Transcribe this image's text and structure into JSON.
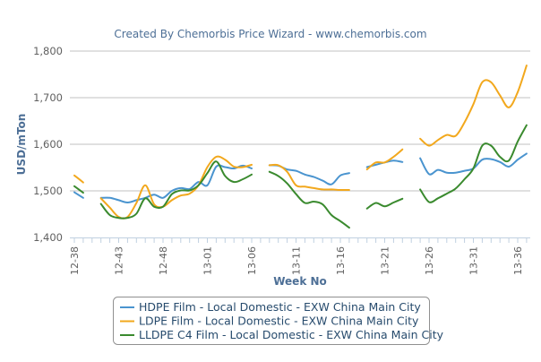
{
  "chart_data": {
    "type": "line",
    "title": "Created By Chemorbis Price Wizard - www.chemorbis.com",
    "xlabel": "Week No",
    "ylabel": "USD/mTon",
    "ylim": [
      1400,
      1800
    ],
    "yticks": [
      "1,400",
      "1,500",
      "1,600",
      "1,700",
      "1,800"
    ],
    "ytick_values": [
      1400,
      1500,
      1600,
      1700,
      1800
    ],
    "grid": true,
    "legend_position": "bottom",
    "categories": [
      "12-38",
      "12-39",
      "12-40",
      "12-41",
      "12-42",
      "12-43",
      "12-44",
      "12-45",
      "12-46",
      "12-47",
      "12-48",
      "12-49",
      "12-50",
      "12-51",
      "12-52",
      "13-01",
      "13-02",
      "13-03",
      "13-04",
      "13-05",
      "13-06",
      "13-07",
      "13-08",
      "13-09",
      "13-10",
      "13-11",
      "13-12",
      "13-13",
      "13-14",
      "13-15",
      "13-16",
      "13-17",
      "13-18",
      "13-19",
      "13-20",
      "13-21",
      "13-22",
      "13-23",
      "13-24",
      "13-25",
      "13-26",
      "13-27",
      "13-28",
      "13-29",
      "13-30",
      "13-31",
      "13-32",
      "13-33",
      "13-34",
      "13-35",
      "13-36",
      "13-37"
    ],
    "xtick_labels": [
      "12-38",
      "12-43",
      "12-48",
      "13-01",
      "13-06",
      "13-11",
      "13-16",
      "13-21",
      "13-26",
      "13-31",
      "13-36"
    ],
    "series": [
      {
        "name": "HDPE Film - Local Domestic - EXW China Main City",
        "color": "#4a94cf",
        "values": [
          1497,
          1485,
          null,
          1485,
          1485,
          1480,
          1475,
          1480,
          1485,
          1492,
          1485,
          1500,
          1506,
          1504,
          1519,
          1512,
          1552,
          1551,
          1548,
          1554,
          1548,
          null,
          1555,
          1554,
          1546,
          1543,
          1535,
          1530,
          1522,
          1514,
          1533,
          1538,
          null,
          1551,
          1556,
          1561,
          1565,
          1562,
          null,
          1570,
          1536,
          1545,
          1539,
          1539,
          1543,
          1548,
          1567,
          1568,
          1562,
          1552,
          1567,
          1580
        ]
      },
      {
        "name": "LDPE Film - Local Domestic - EXW China Main City",
        "color": "#f2a81d",
        "values": [
          1533,
          1518,
          null,
          1484,
          1464,
          1444,
          1444,
          1474,
          1512,
          1471,
          1466,
          1480,
          1490,
          1494,
          1512,
          1551,
          1573,
          1567,
          1552,
          1551,
          1556,
          null,
          1555,
          1555,
          1541,
          1512,
          1509,
          1506,
          1503,
          1503,
          1502,
          1502,
          null,
          1546,
          1561,
          1561,
          1573,
          1589,
          null,
          1612,
          1597,
          1609,
          1620,
          1618,
          1647,
          1686,
          1733,
          1733,
          1705,
          1679,
          1712,
          1769
        ]
      },
      {
        "name": "LLDPE C4 Film - Local Domestic - EXW China Main City",
        "color": "#3a8a2e",
        "values": [
          1510,
          1496,
          null,
          1472,
          1448,
          1442,
          1442,
          1451,
          1484,
          1466,
          1466,
          1493,
          1501,
          1501,
          1512,
          1538,
          1563,
          1532,
          1519,
          1525,
          1535,
          null,
          1541,
          1532,
          1516,
          1493,
          1474,
          1477,
          1471,
          1448,
          1435,
          1421,
          null,
          1462,
          1474,
          1467,
          1475,
          1483,
          null,
          1503,
          1476,
          1484,
          1494,
          1505,
          1525,
          1548,
          1597,
          1597,
          1573,
          1565,
          1606,
          1641
        ]
      }
    ]
  }
}
